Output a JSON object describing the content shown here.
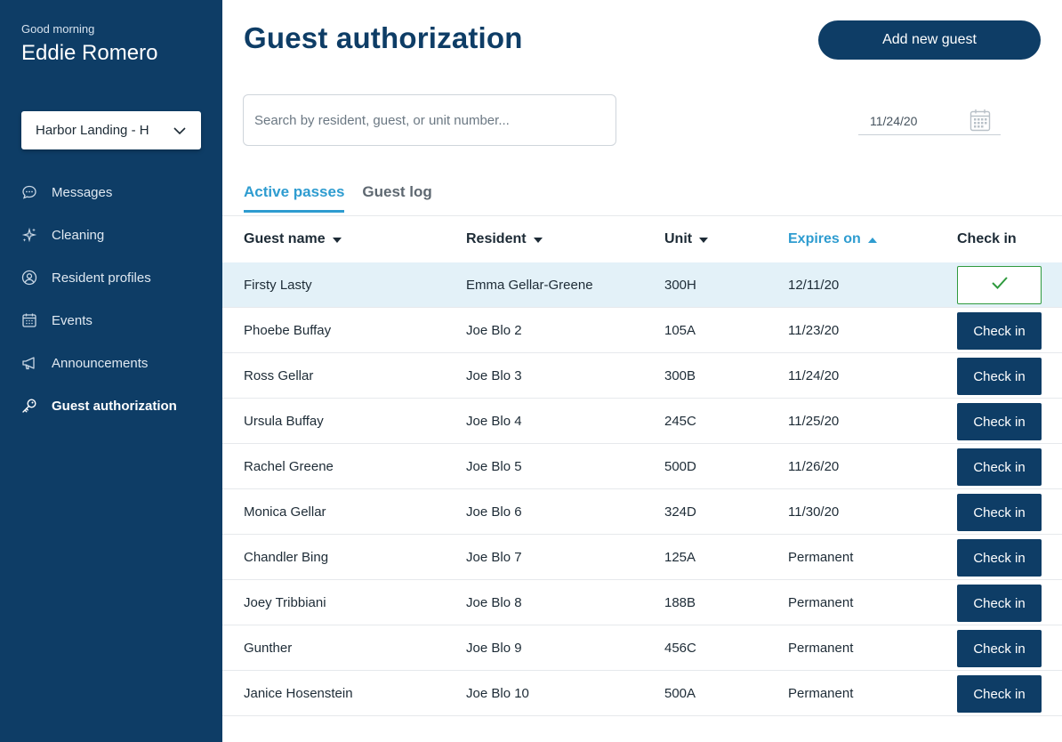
{
  "sidebar": {
    "greeting": "Good morning",
    "user_name": "Eddie Romero",
    "property": "Harbor Landing - H",
    "items": [
      {
        "label": "Messages",
        "icon": "message-icon"
      },
      {
        "label": "Cleaning",
        "icon": "sparkle-icon"
      },
      {
        "label": "Resident profiles",
        "icon": "user-circle-icon"
      },
      {
        "label": "Events",
        "icon": "calendar-icon"
      },
      {
        "label": "Announcements",
        "icon": "megaphone-icon"
      },
      {
        "label": "Guest authorization",
        "icon": "key-icon",
        "active": true
      }
    ]
  },
  "header": {
    "title": "Guest authorization",
    "add_button": "Add new guest"
  },
  "search": {
    "placeholder": "Search by resident, guest, or unit number..."
  },
  "date_filter": "11/24/20",
  "tabs": [
    {
      "label": "Active passes",
      "active": true
    },
    {
      "label": "Guest log",
      "active": false
    }
  ],
  "table": {
    "columns": [
      "Guest name",
      "Resident",
      "Unit",
      "Expires on",
      "Check in"
    ],
    "sorted_column": "Expires on",
    "check_in_label": "Check in",
    "rows": [
      {
        "guest": "Firsty Lasty",
        "resident": "Emma Gellar-Greene",
        "unit": "300H",
        "expires": "12/11/20",
        "checked_in": true
      },
      {
        "guest": "Phoebe Buffay",
        "resident": "Joe Blo 2",
        "unit": "105A",
        "expires": "11/23/20",
        "checked_in": false
      },
      {
        "guest": "Ross Gellar",
        "resident": "Joe Blo 3",
        "unit": "300B",
        "expires": "11/24/20",
        "checked_in": false
      },
      {
        "guest": "Ursula Buffay",
        "resident": "Joe Blo 4",
        "unit": "245C",
        "expires": "11/25/20",
        "checked_in": false
      },
      {
        "guest": "Rachel Greene",
        "resident": "Joe Blo 5",
        "unit": "500D",
        "expires": "11/26/20",
        "checked_in": false
      },
      {
        "guest": "Monica Gellar",
        "resident": "Joe Blo 6",
        "unit": "324D",
        "expires": "11/30/20",
        "checked_in": false
      },
      {
        "guest": "Chandler Bing",
        "resident": "Joe Blo 7",
        "unit": "125A",
        "expires": "Permanent",
        "checked_in": false
      },
      {
        "guest": "Joey Tribbiani",
        "resident": "Joe Blo 8",
        "unit": "188B",
        "expires": "Permanent",
        "checked_in": false
      },
      {
        "guest": "Gunther",
        "resident": "Joe Blo 9",
        "unit": "456C",
        "expires": "Permanent",
        "checked_in": false
      },
      {
        "guest": "Janice Hosenstein",
        "resident": "Joe Blo 10",
        "unit": "500A",
        "expires": "Permanent",
        "checked_in": false
      }
    ]
  },
  "colors": {
    "primary": "#0e3d66",
    "accent": "#2e9cd0",
    "highlight_row": "#e3f1f8",
    "success": "#2f9a3e"
  }
}
